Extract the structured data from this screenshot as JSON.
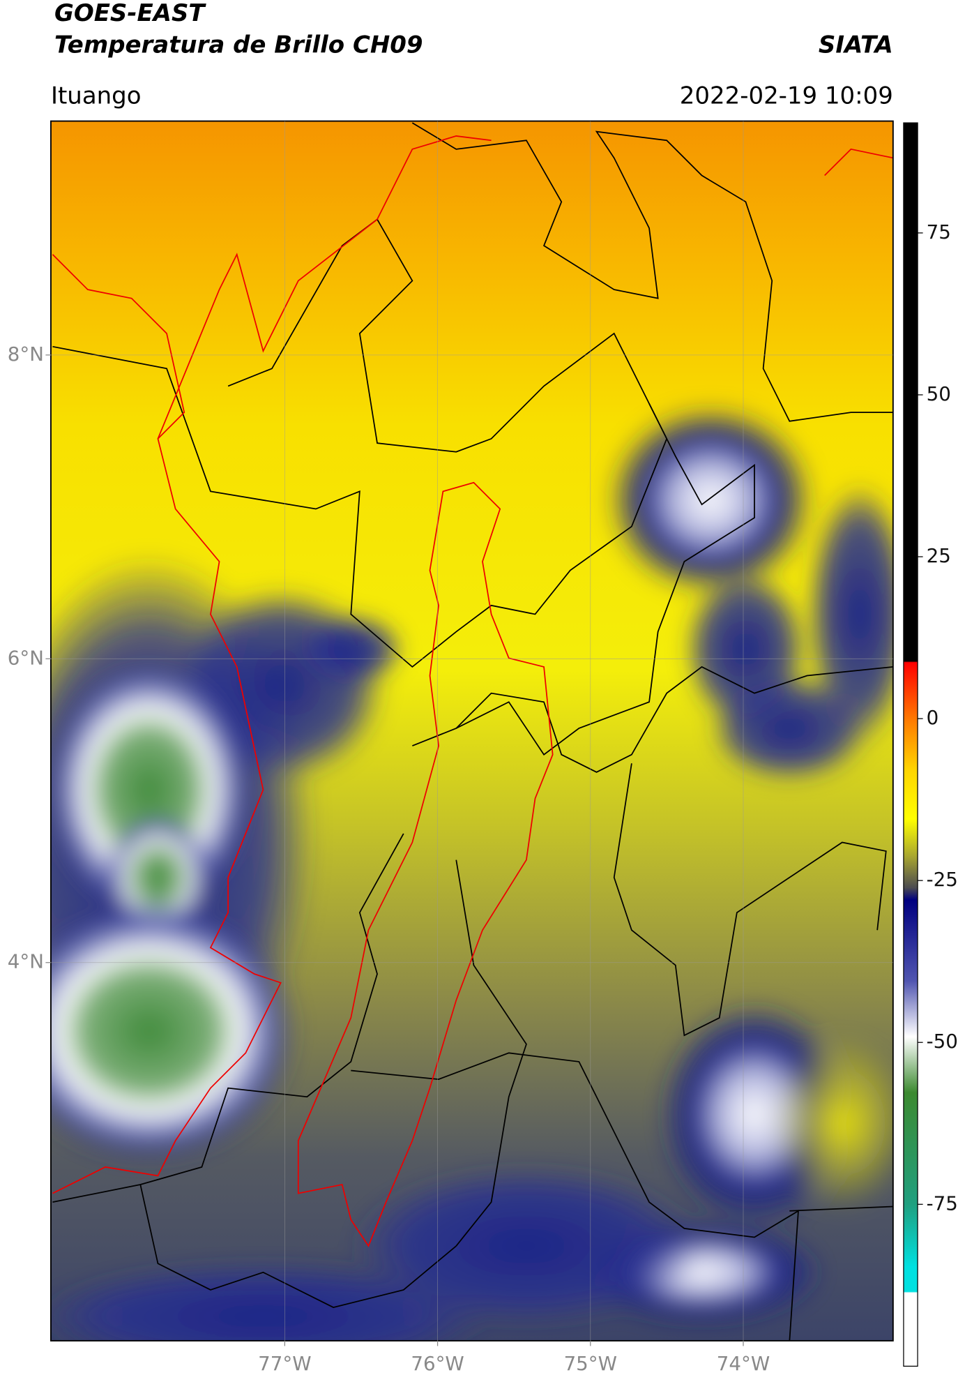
{
  "header": {
    "line1": "GOES-EAST",
    "line2": "Temperatura de Brillo CH09",
    "source": "SIATA",
    "region": "Ituango",
    "datetime": "2022-02-19 10:09"
  },
  "map": {
    "latlim": [
      1.51,
      9.54
    ],
    "lonlim": [
      -78.53,
      -73.02
    ],
    "lat_ticks": [
      {
        "value": 8,
        "label": "8°N"
      },
      {
        "value": 6,
        "label": "6°N"
      },
      {
        "value": 4,
        "label": "4°N"
      }
    ],
    "lon_ticks": [
      {
        "value": -77,
        "label": "77°W"
      },
      {
        "value": -76,
        "label": "76°W"
      },
      {
        "value": -75,
        "label": "75°W"
      },
      {
        "value": -74,
        "label": "74°W"
      }
    ],
    "grid": true,
    "colorbar": {
      "lim": [
        -100,
        92
      ],
      "ticks": [
        75,
        50,
        25,
        0,
        -25,
        -50,
        -75
      ]
    }
  }
}
